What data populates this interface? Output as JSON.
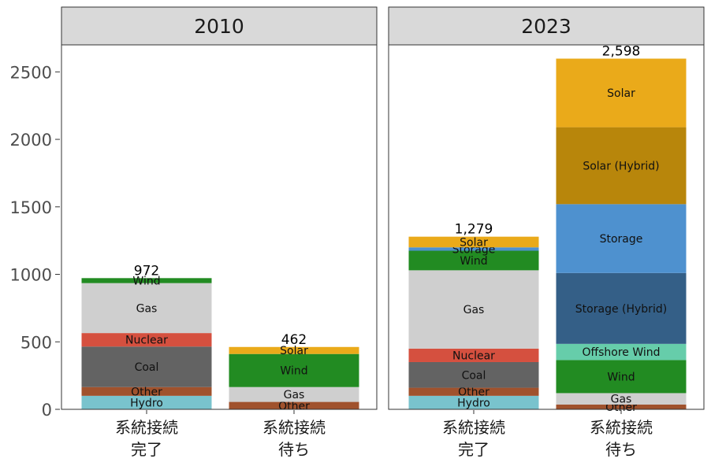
{
  "chart_data": {
    "type": "bar",
    "stacked": true,
    "ylim": [
      0,
      2700
    ],
    "y_ticks": [
      0,
      500,
      1000,
      1500,
      2000,
      2500
    ],
    "colors": {
      "Hydro": "#79c3cd",
      "Other": "#a0522d",
      "Coal": "#636363",
      "Nuclear": "#d5503f",
      "Gas": "#cfcfcf",
      "Wind": "#228b22",
      "Offshore Wind": "#66cdaa",
      "Storage": "#4e91cf",
      "Storage (Hybrid)": "#345f87",
      "Solar": "#eaaa1a",
      "Solar (Hybrid)": "#b8860b"
    },
    "panels": [
      {
        "title": "2010",
        "bars": [
          {
            "category": [
              "系統接続",
              "完了"
            ],
            "total_label": "972",
            "segments": [
              {
                "name": "Hydro",
                "value": 100
              },
              {
                "name": "Other",
                "value": 65
              },
              {
                "name": "Coal",
                "value": 300
              },
              {
                "name": "Nuclear",
                "value": 100
              },
              {
                "name": "Gas",
                "value": 370
              },
              {
                "name": "Wind",
                "value": 37
              }
            ]
          },
          {
            "category": [
              "系統接続",
              "待ち"
            ],
            "total_label": "462",
            "segments": [
              {
                "name": "Other",
                "value": 55
              },
              {
                "name": "Gas",
                "value": 110
              },
              {
                "name": "Wind",
                "value": 245
              },
              {
                "name": "Solar",
                "value": 52
              }
            ]
          }
        ]
      },
      {
        "title": "2023",
        "bars": [
          {
            "category": [
              "系統接続",
              "完了"
            ],
            "total_label": "1,279",
            "segments": [
              {
                "name": "Hydro",
                "value": 100
              },
              {
                "name": "Other",
                "value": 60
              },
              {
                "name": "Coal",
                "value": 190
              },
              {
                "name": "Nuclear",
                "value": 100
              },
              {
                "name": "Gas",
                "value": 580
              },
              {
                "name": "Wind",
                "value": 145
              },
              {
                "name": "Storage",
                "value": 25
              },
              {
                "name": "Solar",
                "value": 79
              }
            ]
          },
          {
            "category": [
              "系統接続",
              "待ち"
            ],
            "total_label": "2,598",
            "segments": [
              {
                "name": "Other",
                "value": 35
              },
              {
                "name": "Gas",
                "value": 85
              },
              {
                "name": "Wind",
                "value": 245
              },
              {
                "name": "Offshore Wind",
                "value": 120
              },
              {
                "name": "Storage (Hybrid)",
                "value": 525
              },
              {
                "name": "Storage",
                "value": 510
              },
              {
                "name": "Solar (Hybrid)",
                "value": 570
              },
              {
                "name": "Solar",
                "value": 508
              }
            ]
          }
        ]
      }
    ]
  }
}
